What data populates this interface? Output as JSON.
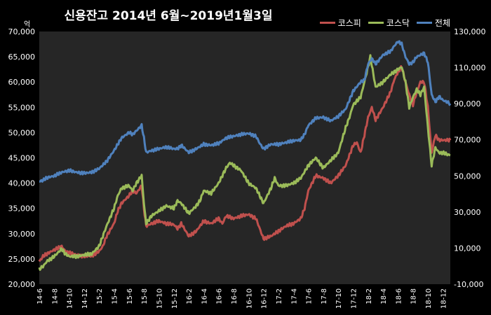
{
  "title": "신용잔고  2014년 6월~2019년1월3일",
  "left_unit": "억",
  "legend": [
    {
      "name": "코스피",
      "color": "#c0504d"
    },
    {
      "name": "코스닥",
      "color": "#9bbb59"
    },
    {
      "name": "전체",
      "color": "#4f81bd"
    }
  ],
  "chart_data": {
    "type": "line",
    "title": "신용잔고  2014년 6월~2019년1월3일",
    "xlabel": "",
    "ylabel": "억",
    "ylim": [
      20000,
      70000
    ],
    "y2lim": [
      -10000,
      130000
    ],
    "yticks": [
      "20,000",
      "25,000",
      "30,000",
      "35,000",
      "40,000",
      "45,000",
      "50,000",
      "55,000",
      "60,000",
      "65,000",
      "70,000"
    ],
    "y2ticks": [
      "-10,000",
      "10,000",
      "30,000",
      "50,000",
      "70,000",
      "90,000",
      "110,000",
      "130,000"
    ],
    "x_ticks": [
      "14-6",
      "14-8",
      "14-10",
      "14-12",
      "15-2",
      "15-4",
      "15-6",
      "15-8",
      "15-10",
      "15-12",
      "16-2",
      "16-4",
      "16-6",
      "16-8",
      "16-10",
      "16-12",
      "17-2",
      "17-4",
      "17-6",
      "17-8",
      "17-10",
      "17-12",
      "18-2",
      "18-4",
      "18-6",
      "18-8",
      "18-10",
      "18-12"
    ],
    "x_month_index": [
      0,
      2,
      4,
      6,
      8,
      10,
      12,
      14,
      16,
      18,
      20,
      22,
      24,
      26,
      28,
      30,
      32,
      34,
      36,
      38,
      40,
      42,
      44,
      46,
      48,
      50,
      52,
      54
    ],
    "grid": false,
    "legend_position": "top-right",
    "series": [
      {
        "name": "코스피",
        "axis": "left",
        "color": "#c0504d",
        "points": [
          [
            0,
            24500
          ],
          [
            0.5,
            25500
          ],
          [
            1,
            26000
          ],
          [
            2,
            26800
          ],
          [
            3,
            27500
          ],
          [
            3.5,
            26500
          ],
          [
            4,
            26200
          ],
          [
            5,
            25800
          ],
          [
            6,
            25500
          ],
          [
            7,
            25600
          ],
          [
            8,
            26500
          ],
          [
            8.5,
            27500
          ],
          [
            9,
            29500
          ],
          [
            10,
            32000
          ],
          [
            10.5,
            34500
          ],
          [
            11,
            36000
          ],
          [
            12,
            37500
          ],
          [
            12.5,
            38500
          ],
          [
            13,
            38000
          ],
          [
            13.7,
            39500
          ],
          [
            14,
            35000
          ],
          [
            14.3,
            31500
          ],
          [
            15,
            32000
          ],
          [
            16,
            32500
          ],
          [
            17,
            32000
          ],
          [
            18,
            31800
          ],
          [
            18.5,
            31000
          ],
          [
            19,
            32000
          ],
          [
            20,
            29500
          ],
          [
            21,
            30500
          ],
          [
            21.5,
            31500
          ],
          [
            22,
            32500
          ],
          [
            23,
            32000
          ],
          [
            24,
            33000
          ],
          [
            24.5,
            32000
          ],
          [
            25,
            33500
          ],
          [
            26,
            33000
          ],
          [
            27,
            33500
          ],
          [
            28,
            33800
          ],
          [
            29,
            33000
          ],
          [
            29.5,
            31000
          ],
          [
            30,
            29000
          ],
          [
            31,
            29500
          ],
          [
            32,
            30500
          ],
          [
            33,
            31500
          ],
          [
            34,
            32000
          ],
          [
            35,
            33000
          ],
          [
            35.5,
            35000
          ],
          [
            36,
            38500
          ],
          [
            37,
            41500
          ],
          [
            38,
            41000
          ],
          [
            39,
            40000
          ],
          [
            40,
            41500
          ],
          [
            41,
            43500
          ],
          [
            42,
            47500
          ],
          [
            42.5,
            48000
          ],
          [
            43,
            46000
          ],
          [
            44,
            53000
          ],
          [
            44.5,
            55000
          ],
          [
            45,
            52500
          ],
          [
            46,
            55000
          ],
          [
            47,
            58000
          ],
          [
            47.5,
            60500
          ],
          [
            48,
            62000
          ],
          [
            48.5,
            63000
          ],
          [
            49,
            60000
          ],
          [
            49.5,
            57500
          ],
          [
            50,
            55500
          ],
          [
            50.5,
            58000
          ],
          [
            51,
            60000
          ],
          [
            51.5,
            60000
          ],
          [
            52,
            55000
          ],
          [
            52.5,
            46000
          ],
          [
            53,
            49500
          ],
          [
            53.5,
            48500
          ],
          [
            54,
            48500
          ],
          [
            55,
            48500
          ]
        ]
      },
      {
        "name": "코스닥",
        "axis": "left",
        "color": "#9bbb59",
        "points": [
          [
            0,
            23000
          ],
          [
            0.5,
            23500
          ],
          [
            1,
            24500
          ],
          [
            2,
            25500
          ],
          [
            3,
            27000
          ],
          [
            3.5,
            26000
          ],
          [
            4,
            25500
          ],
          [
            5,
            25500
          ],
          [
            6,
            25800
          ],
          [
            7,
            26000
          ],
          [
            8,
            27500
          ],
          [
            8.5,
            29500
          ],
          [
            9,
            31500
          ],
          [
            10,
            35000
          ],
          [
            10.5,
            37500
          ],
          [
            11,
            39000
          ],
          [
            12,
            39500
          ],
          [
            12.5,
            38500
          ],
          [
            13,
            40000
          ],
          [
            13.7,
            41500
          ],
          [
            14,
            36000
          ],
          [
            14.3,
            32000
          ],
          [
            15,
            33500
          ],
          [
            16,
            34500
          ],
          [
            17,
            35500
          ],
          [
            18,
            35000
          ],
          [
            18.5,
            36500
          ],
          [
            19,
            36000
          ],
          [
            20,
            34000
          ],
          [
            21,
            35500
          ],
          [
            21.5,
            36500
          ],
          [
            22,
            38500
          ],
          [
            23,
            38000
          ],
          [
            24,
            40000
          ],
          [
            25,
            43000
          ],
          [
            25.5,
            44000
          ],
          [
            26,
            43500
          ],
          [
            27,
            42500
          ],
          [
            28,
            40000
          ],
          [
            29,
            39000
          ],
          [
            29.5,
            37500
          ],
          [
            30,
            36000
          ],
          [
            31,
            39000
          ],
          [
            31.5,
            41000
          ],
          [
            32,
            39500
          ],
          [
            33,
            39500
          ],
          [
            34,
            40000
          ],
          [
            35,
            41000
          ],
          [
            36,
            43500
          ],
          [
            37,
            45000
          ],
          [
            38,
            43000
          ],
          [
            39,
            44500
          ],
          [
            40,
            46000
          ],
          [
            41,
            51000
          ],
          [
            41.5,
            53000
          ],
          [
            42,
            55500
          ],
          [
            43,
            57000
          ],
          [
            44,
            63000
          ],
          [
            44.3,
            65000
          ],
          [
            45,
            59000
          ],
          [
            46,
            60000
          ],
          [
            47,
            61500
          ],
          [
            47.5,
            62000
          ],
          [
            48,
            62500
          ],
          [
            48.5,
            63000
          ],
          [
            49,
            60000
          ],
          [
            49.5,
            55000
          ],
          [
            50,
            57000
          ],
          [
            50.5,
            58500
          ],
          [
            51,
            57500
          ],
          [
            51.5,
            59000
          ],
          [
            52,
            51000
          ],
          [
            52.5,
            43500
          ],
          [
            53,
            47000
          ],
          [
            53.5,
            46000
          ],
          [
            54,
            46000
          ],
          [
            55,
            45500
          ]
        ]
      },
      {
        "name": "전체",
        "axis": "right",
        "color": "#4f81bd",
        "points": [
          [
            0,
            47000
          ],
          [
            0.5,
            47500
          ],
          [
            1,
            49000
          ],
          [
            2,
            50000
          ],
          [
            3,
            52000
          ],
          [
            4,
            53000
          ],
          [
            5,
            52000
          ],
          [
            6,
            51500
          ],
          [
            7,
            52000
          ],
          [
            8,
            54000
          ],
          [
            9,
            58000
          ],
          [
            10,
            64000
          ],
          [
            11,
            71000
          ],
          [
            12,
            74000
          ],
          [
            12.5,
            73000
          ],
          [
            13,
            75000
          ],
          [
            13.7,
            78000
          ],
          [
            14,
            71000
          ],
          [
            14.3,
            63000
          ],
          [
            15,
            64000
          ],
          [
            16,
            65000
          ],
          [
            17,
            66000
          ],
          [
            18,
            65000
          ],
          [
            18.5,
            65000
          ],
          [
            19,
            67000
          ],
          [
            20,
            63000
          ],
          [
            21,
            65000
          ],
          [
            22,
            67500
          ],
          [
            23,
            67000
          ],
          [
            24,
            68000
          ],
          [
            25,
            71000
          ],
          [
            26,
            72000
          ],
          [
            27,
            73000
          ],
          [
            28,
            73500
          ],
          [
            29,
            72000
          ],
          [
            29.5,
            68000
          ],
          [
            30,
            65000
          ],
          [
            31,
            67500
          ],
          [
            32,
            67500
          ],
          [
            33,
            68500
          ],
          [
            34,
            69500
          ],
          [
            35,
            70000
          ],
          [
            35.5,
            73000
          ],
          [
            36,
            78000
          ],
          [
            37,
            82000
          ],
          [
            38,
            82500
          ],
          [
            39,
            80500
          ],
          [
            40,
            83000
          ],
          [
            41,
            87000
          ],
          [
            42,
            97000
          ],
          [
            43,
            102000
          ],
          [
            43.5,
            103000
          ],
          [
            44,
            112000
          ],
          [
            44.5,
            115000
          ],
          [
            45,
            112000
          ],
          [
            46,
            117000
          ],
          [
            47,
            119000
          ],
          [
            47.5,
            122000
          ],
          [
            48,
            124500
          ],
          [
            48.5,
            123000
          ],
          [
            49,
            116000
          ],
          [
            49.5,
            112000
          ],
          [
            50,
            113000
          ],
          [
            50.5,
            116000
          ],
          [
            51,
            117000
          ],
          [
            51.5,
            118000
          ],
          [
            52,
            113000
          ],
          [
            52.5,
            95000
          ],
          [
            53,
            91000
          ],
          [
            53.5,
            94000
          ],
          [
            54,
            92000
          ],
          [
            55,
            90000
          ]
        ]
      }
    ]
  }
}
